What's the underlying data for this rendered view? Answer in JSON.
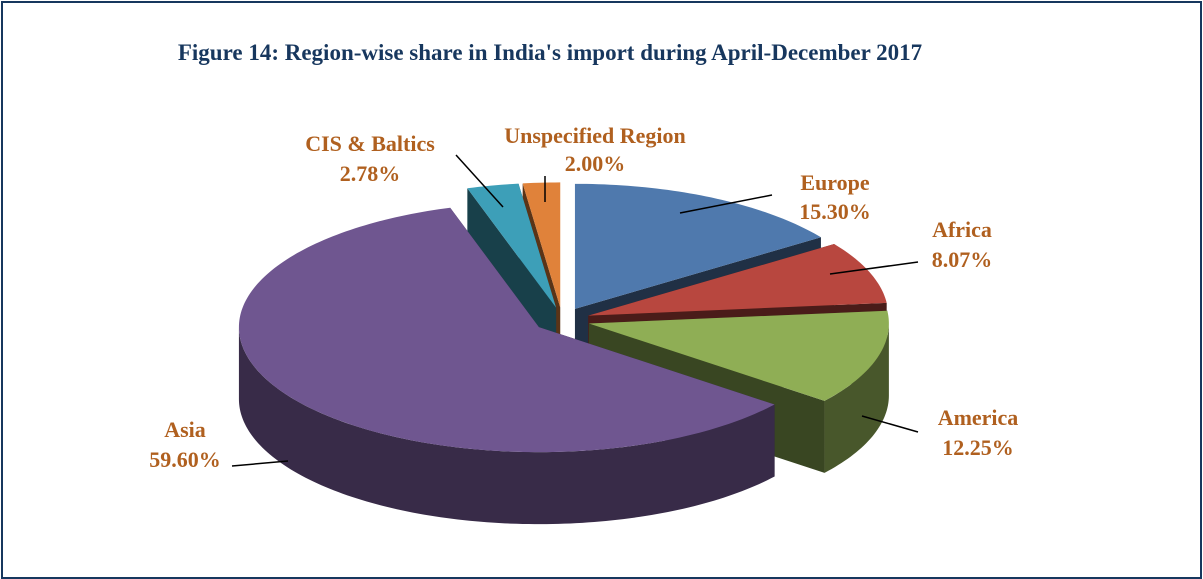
{
  "chart_data": {
    "type": "pie",
    "three_d": true,
    "exploded": true,
    "title": "Figure 14: Region-wise share in India's import during April-December 2017",
    "categories": [
      "Europe",
      "Africa",
      "America",
      "Asia",
      "CIS & Baltics",
      "Unspecified Region"
    ],
    "values": [
      15.3,
      8.07,
      12.25,
      59.6,
      2.78,
      2.0
    ],
    "value_labels": [
      "15.30%",
      "8.07%",
      "12.25%",
      "59.60%",
      "2.78%",
      "2.00%"
    ],
    "colors": [
      "#4f79ad",
      "#b8473f",
      "#8fae55",
      "#6f5690",
      "#3d9fb8",
      "#e0823a"
    ]
  }
}
